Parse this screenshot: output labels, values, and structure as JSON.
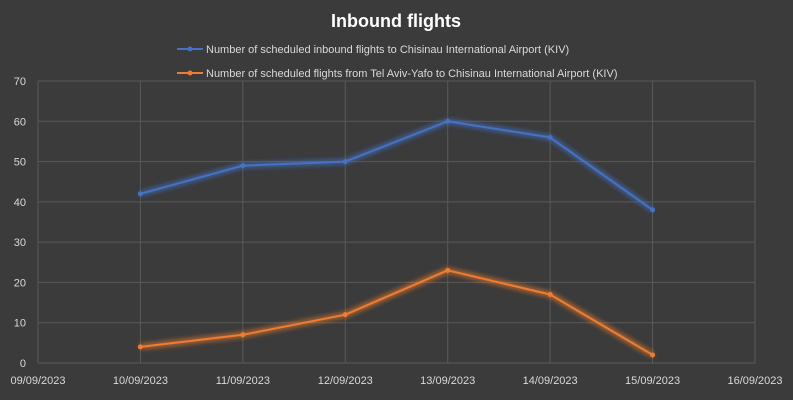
{
  "chart_data": {
    "type": "line",
    "title": "Inbound flights",
    "x": [
      "10/09/2023",
      "11/09/2023",
      "12/09/2023",
      "13/09/2023",
      "14/09/2023",
      "15/09/2023"
    ],
    "x_ticks": [
      "09/09/2023",
      "10/09/2023",
      "11/09/2023",
      "12/09/2023",
      "13/09/2023",
      "14/09/2023",
      "15/09/2023",
      "16/09/2023"
    ],
    "xlim": [
      "09/09/2023",
      "16/09/2023"
    ],
    "ylim": [
      0,
      70
    ],
    "y_ticks": [
      0,
      10,
      20,
      30,
      40,
      50,
      60,
      70
    ],
    "grid": true,
    "legend_position": "top",
    "series": [
      {
        "name": "Number of scheduled inbound flights to Chisinau International Airport (KIV)",
        "color": "#4472c4",
        "values": [
          42,
          49,
          50,
          60,
          56,
          38
        ]
      },
      {
        "name": "Number of scheduled flights from Tel Aviv-Yafo to Chisinau International Airport (KIV)",
        "color": "#ed7d31",
        "values": [
          4,
          7,
          12,
          23,
          17,
          2
        ]
      }
    ]
  }
}
